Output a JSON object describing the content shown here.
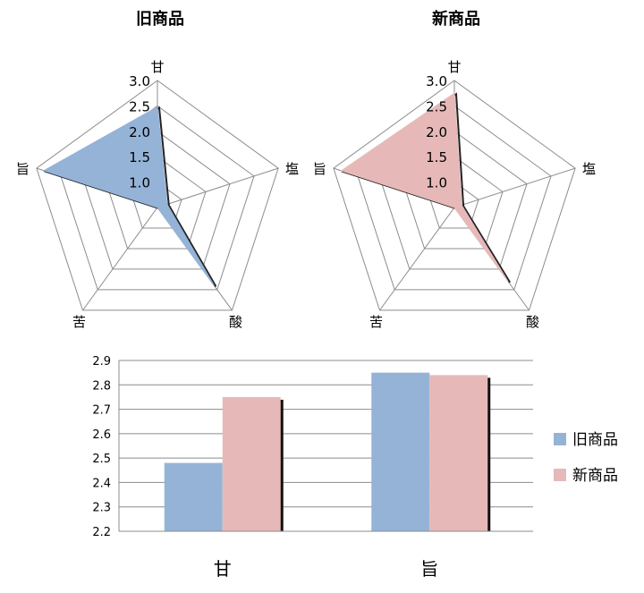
{
  "chart_data": [
    {
      "type": "radar",
      "title": "旧商品",
      "axes": [
        "甘",
        "塩",
        "酸",
        "苦",
        "旨"
      ],
      "rlim": [
        0.5,
        3.0
      ],
      "ticks": [
        "1.0",
        "1.5",
        "2.0",
        "2.5",
        "3.0"
      ],
      "series": [
        {
          "name": "旧商品",
          "values": [
            2.48,
            0.7,
            2.4,
            0.5,
            2.85
          ]
        }
      ],
      "color": "#95b3d7"
    },
    {
      "type": "radar",
      "title": "新商品",
      "axes": [
        "甘",
        "塩",
        "酸",
        "苦",
        "旨"
      ],
      "rlim": [
        0.5,
        3.0
      ],
      "ticks": [
        "1.0",
        "1.5",
        "2.0",
        "2.5",
        "3.0"
      ],
      "series": [
        {
          "name": "新商品",
          "values": [
            2.75,
            0.65,
            2.3,
            0.5,
            2.84
          ]
        }
      ],
      "color": "#e6b9b8"
    },
    {
      "type": "bar",
      "categories": [
        "甘",
        "旨"
      ],
      "series": [
        {
          "name": "旧商品",
          "values": [
            2.48,
            2.85
          ],
          "color": "#95b3d7"
        },
        {
          "name": "新商品",
          "values": [
            2.75,
            2.84
          ],
          "color": "#e6b9b8"
        }
      ],
      "ylim": [
        2.2,
        2.9
      ],
      "yticks": [
        "2.2",
        "2.3",
        "2.4",
        "2.5",
        "2.6",
        "2.7",
        "2.8",
        "2.9"
      ],
      "grid": true,
      "legend": "right"
    }
  ]
}
